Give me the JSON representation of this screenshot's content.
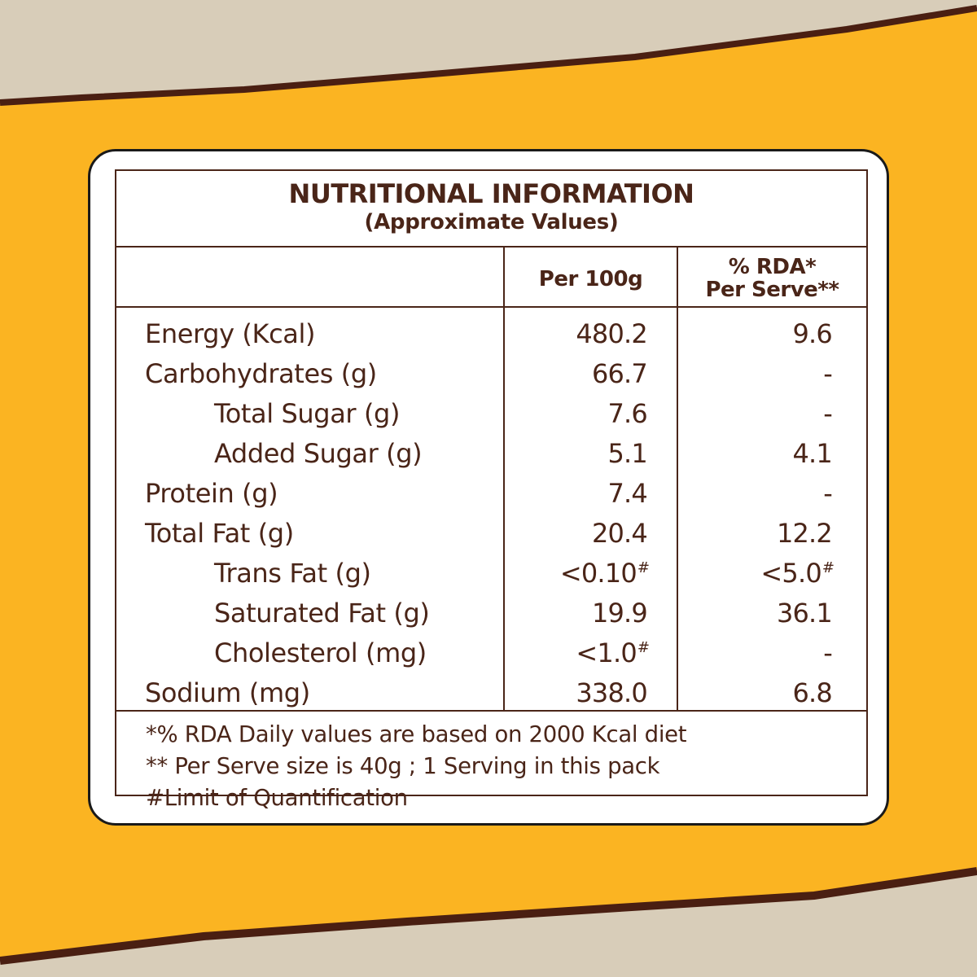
{
  "colors": {
    "background": "#FBB422",
    "paper": "#d8cdb9",
    "paper_edge": "#4a1f12",
    "text": "#4a2518",
    "card": "#ffffff"
  },
  "panel": {
    "title": "NUTRITIONAL INFORMATION",
    "subtitle": "(Approximate Values)",
    "columns": {
      "per100": "Per 100g",
      "rda_line1": "% RDA*",
      "rda_line2": "Per Serve**"
    },
    "rows": [
      {
        "name": "Energy (Kcal)",
        "per100": "480.2",
        "per100_mark": "",
        "rda": "9.6",
        "rda_mark": ""
      },
      {
        "name": "Carbohydrates (g)",
        "per100": "66.7",
        "per100_mark": "",
        "rda": "-",
        "rda_mark": ""
      },
      {
        "name": "Total Sugar (g)",
        "per100": "7.6",
        "per100_mark": "",
        "rda": "-",
        "rda_mark": ""
      },
      {
        "name": "Added Sugar (g)",
        "per100": "5.1",
        "per100_mark": "",
        "rda": "4.1",
        "rda_mark": ""
      },
      {
        "name": "Protein (g)",
        "per100": "7.4",
        "per100_mark": "",
        "rda": "-",
        "rda_mark": ""
      },
      {
        "name": "Total Fat (g)",
        "per100": "20.4",
        "per100_mark": "",
        "rda": "12.2",
        "rda_mark": ""
      },
      {
        "name": "Trans Fat (g)",
        "per100": "<0.10",
        "per100_mark": "#",
        "rda": "<5.0",
        "rda_mark": "#"
      },
      {
        "name": "Saturated Fat (g)",
        "per100": "19.9",
        "per100_mark": "",
        "rda": "36.1",
        "rda_mark": ""
      },
      {
        "name": "Cholesterol (mg)",
        "per100": "<1.0",
        "per100_mark": "#",
        "rda": "-",
        "rda_mark": ""
      },
      {
        "name": "Sodium (mg)",
        "per100": "338.0",
        "per100_mark": "",
        "rda": "6.8",
        "rda_mark": ""
      }
    ],
    "footnotes": [
      "*% RDA Daily values are based on 2000 Kcal diet",
      "** Per Serve size is 40g ; 1 Serving in this pack",
      "#Limit of Quantification"
    ]
  }
}
